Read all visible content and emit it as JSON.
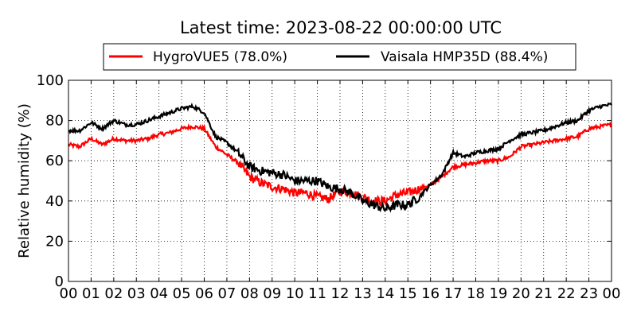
{
  "chart_data": {
    "type": "line",
    "title": "Latest time: 2023-08-22 00:00:00 UTC",
    "xlabel": "",
    "ylabel": "Relative humidity (%)",
    "xlim": [
      0,
      24
    ],
    "ylim": [
      0,
      100
    ],
    "x_ticks": [
      0,
      1,
      2,
      3,
      4,
      5,
      6,
      7,
      8,
      9,
      10,
      11,
      12,
      13,
      14,
      15,
      16,
      17,
      18,
      19,
      20,
      21,
      22,
      23,
      24
    ],
    "x_tick_labels": [
      "00",
      "01",
      "02",
      "03",
      "04",
      "05",
      "06",
      "07",
      "08",
      "09",
      "10",
      "11",
      "12",
      "13",
      "14",
      "15",
      "16",
      "17",
      "18",
      "19",
      "20",
      "21",
      "22",
      "23",
      "00"
    ],
    "y_ticks": [
      0,
      20,
      40,
      60,
      80,
      100
    ],
    "y_tick_labels": [
      "0",
      "20",
      "40",
      "60",
      "80",
      "100"
    ],
    "grid": true,
    "legend_position": "top",
    "x": [
      0,
      0.5,
      1,
      1.5,
      2,
      2.5,
      3,
      3.5,
      4,
      4.5,
      5,
      5.5,
      6,
      6.5,
      7,
      7.5,
      8,
      8.5,
      9,
      9.5,
      10,
      10.5,
      11,
      11.5,
      12,
      12.5,
      13,
      13.5,
      14,
      14.5,
      15,
      15.5,
      16,
      16.5,
      17,
      17.5,
      18,
      18.5,
      19,
      19.5,
      20,
      20.5,
      21,
      21.5,
      22,
      22.5,
      23,
      23.5,
      24
    ],
    "series": [
      {
        "name": "HygroVUE5 (78.0%)",
        "color": "#ff0000",
        "values": [
          68,
          67,
          71,
          68,
          71,
          70,
          70,
          71,
          73,
          74,
          76,
          77,
          76,
          67,
          63,
          59,
          52,
          49,
          47,
          46,
          44,
          44,
          42,
          41,
          45,
          44,
          42,
          40,
          40,
          43,
          44,
          46,
          48,
          52,
          57,
          58,
          59,
          60,
          60,
          62,
          67,
          68,
          69,
          70,
          71,
          72,
          76,
          77,
          78
        ]
      },
      {
        "name": "Vaisala HMP35D (88.4%)",
        "color": "#000000",
        "values": [
          75,
          75,
          79,
          76,
          80,
          78,
          78,
          80,
          82,
          84,
          86,
          87,
          84,
          72,
          69,
          64,
          57,
          55,
          54,
          53,
          50,
          50,
          50,
          47,
          46,
          44,
          40,
          38,
          36,
          38,
          38,
          42,
          48,
          53,
          64,
          62,
          64,
          65,
          66,
          70,
          73,
          74,
          75,
          77,
          79,
          80,
          85,
          87,
          88
        ]
      }
    ]
  }
}
